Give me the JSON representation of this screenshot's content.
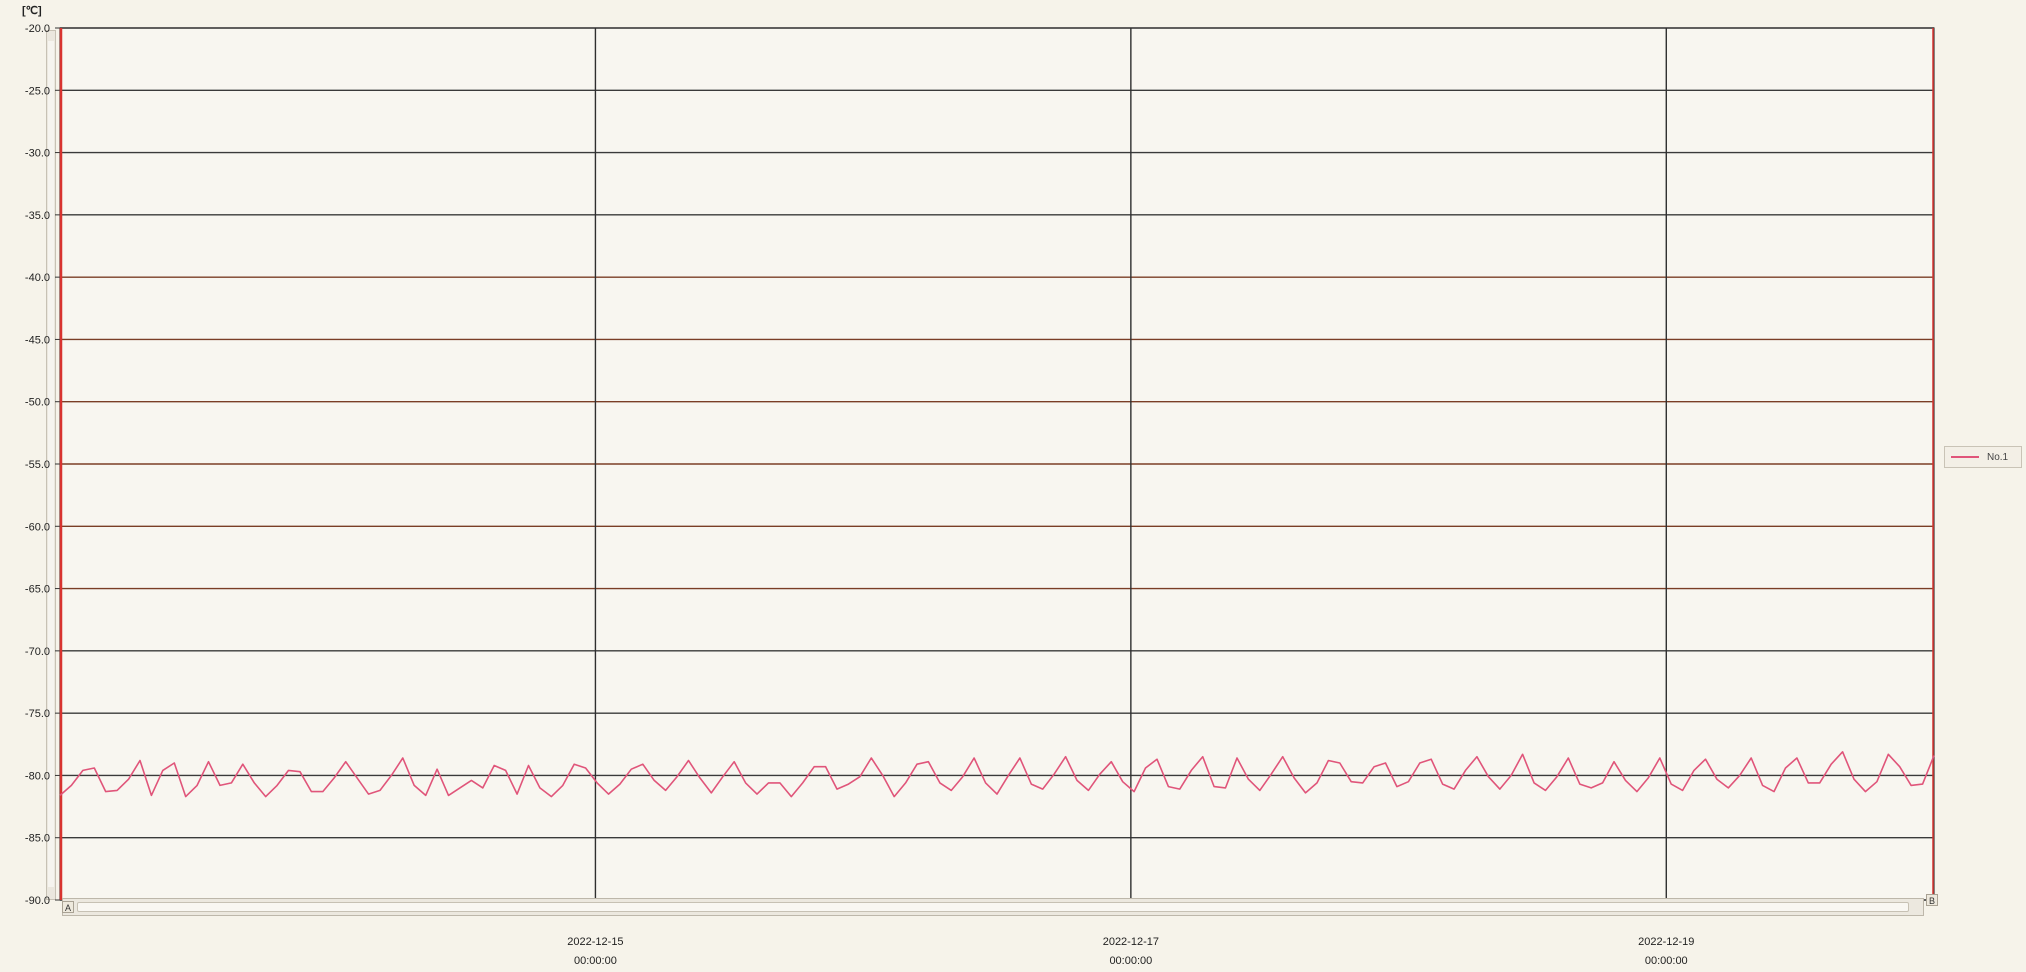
{
  "chart_data": {
    "type": "line",
    "ylabel": "[℃]",
    "ylim": [
      -90.0,
      -20.0
    ],
    "y_ticks": [
      "-20.0",
      "-25.0",
      "-30.0",
      "-35.0",
      "-40.0",
      "-45.0",
      "-50.0",
      "-55.0",
      "-60.0",
      "-65.0",
      "-70.0",
      "-75.0",
      "-80.0",
      "-85.0",
      "-90.0"
    ],
    "x_ticks": [
      {
        "date": "2022-12-15",
        "time": "00:00:00"
      },
      {
        "date": "2022-12-17",
        "time": "00:00:00"
      },
      {
        "date": "2022-12-19",
        "time": "00:00:00"
      }
    ],
    "x_range": [
      "2022-12-13 00:00:00",
      "2022-12-20 00:00:00"
    ],
    "grid": true,
    "legend_position": "right",
    "series": [
      {
        "name": "No.1",
        "color": "#e0557a",
        "values": [
          -81.6,
          -80.8,
          -79.6,
          -79.4,
          -81.3,
          -81.2,
          -80.3,
          -78.8,
          -81.6,
          -79.6,
          -79.0,
          -81.7,
          -80.8,
          -78.9,
          -80.8,
          -80.6,
          -79.1,
          -80.6,
          -81.7,
          -80.8,
          -79.6,
          -79.7,
          -81.3,
          -81.3,
          -80.2,
          -78.9,
          -80.2,
          -81.5,
          -81.2,
          -80.0,
          -78.6,
          -80.8,
          -81.6,
          -79.5,
          -81.6,
          -81.0,
          -80.4,
          -81.0,
          -79.2,
          -79.6,
          -81.5,
          -79.2,
          -81.0,
          -81.7,
          -80.8,
          -79.1,
          -79.4,
          -80.6,
          -81.5,
          -80.7,
          -79.5,
          -79.1,
          -80.4,
          -81.2,
          -80.1,
          -78.8,
          -80.2,
          -81.4,
          -80.1,
          -78.9,
          -80.6,
          -81.5,
          -80.6,
          -80.6,
          -81.7,
          -80.6,
          -79.3,
          -79.3,
          -81.1,
          -80.7,
          -80.1,
          -78.6,
          -80.0,
          -81.7,
          -80.6,
          -79.1,
          -78.9,
          -80.6,
          -81.2,
          -80.1,
          -78.6,
          -80.6,
          -81.5,
          -80.0,
          -78.6,
          -80.7,
          -81.1,
          -79.9,
          -78.5,
          -80.4,
          -81.2,
          -79.9,
          -78.9,
          -80.5,
          -81.3,
          -79.4,
          -78.7,
          -80.9,
          -81.1,
          -79.6,
          -78.5,
          -80.9,
          -81.0,
          -78.6,
          -80.3,
          -81.2,
          -79.9,
          -78.5,
          -80.2,
          -81.4,
          -80.6,
          -78.8,
          -79.0,
          -80.5,
          -80.6,
          -79.3,
          -79.0,
          -80.9,
          -80.5,
          -79.0,
          -78.7,
          -80.7,
          -81.1,
          -79.6,
          -78.5,
          -80.1,
          -81.1,
          -80.0,
          -78.3,
          -80.6,
          -81.2,
          -80.1,
          -78.6,
          -80.7,
          -81.0,
          -80.6,
          -78.9,
          -80.4,
          -81.3,
          -80.2,
          -78.6,
          -80.7,
          -81.2,
          -79.6,
          -78.7,
          -80.3,
          -81.0,
          -80.0,
          -78.6,
          -80.8,
          -81.3,
          -79.4,
          -78.6,
          -80.6,
          -80.6,
          -79.1,
          -78.1,
          -80.3,
          -81.3,
          -80.5,
          -78.3,
          -79.3,
          -80.8,
          -80.7,
          -78.4
        ]
      }
    ],
    "scroll_markers": {
      "left": "A",
      "right": "B"
    }
  }
}
